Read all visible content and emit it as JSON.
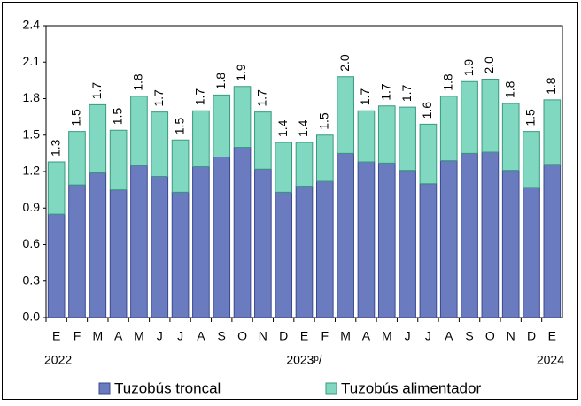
{
  "chart_data": {
    "type": "stacked_bar",
    "categories": [
      "E",
      "F",
      "M",
      "A",
      "M",
      "J",
      "J",
      "A",
      "S",
      "O",
      "N",
      "D",
      "E",
      "F",
      "M",
      "A",
      "M",
      "J",
      "J",
      "A",
      "S",
      "O",
      "N",
      "D",
      "E"
    ],
    "years": [
      "2022",
      null,
      null,
      null,
      null,
      null,
      null,
      null,
      null,
      null,
      null,
      null,
      "2023ᵖ/",
      null,
      null,
      null,
      null,
      null,
      null,
      null,
      null,
      null,
      null,
      null,
      "2024"
    ],
    "series": [
      {
        "name": "Tuzobús troncal",
        "color": "#6b7bbf",
        "values": [
          0.85,
          1.09,
          1.19,
          1.05,
          1.25,
          1.16,
          1.03,
          1.24,
          1.32,
          1.4,
          1.22,
          1.03,
          1.08,
          1.12,
          1.35,
          1.28,
          1.27,
          1.21,
          1.1,
          1.29,
          1.35,
          1.36,
          1.21,
          1.07,
          1.26
        ]
      },
      {
        "name": "Tuzobús alimentador",
        "color": "#7fd8bf",
        "values": [
          0.43,
          0.44,
          0.56,
          0.49,
          0.57,
          0.53,
          0.43,
          0.46,
          0.51,
          0.5,
          0.47,
          0.41,
          0.36,
          0.38,
          0.63,
          0.42,
          0.47,
          0.52,
          0.49,
          0.53,
          0.59,
          0.6,
          0.55,
          0.46,
          0.53
        ]
      }
    ],
    "total_labels": [
      "1.3",
      "1.5",
      "1.7",
      "1.5",
      "1.8",
      "1.7",
      "1.5",
      "1.7",
      "1.8",
      "1.9",
      "1.7",
      "1.4",
      "1.4",
      "1.5",
      "2.0",
      "1.7",
      "1.7",
      "1.7",
      "1.6",
      "1.8",
      "1.9",
      "2.0",
      "1.8",
      "1.5",
      "1.8"
    ],
    "ylim": [
      0,
      2.4
    ],
    "yticks": [
      {
        "value": 0,
        "label": "0.0"
      },
      0.3,
      0.6,
      0.9,
      1.2,
      1.5,
      1.8,
      2.1,
      2.4
    ],
    "legend": "bottom"
  }
}
